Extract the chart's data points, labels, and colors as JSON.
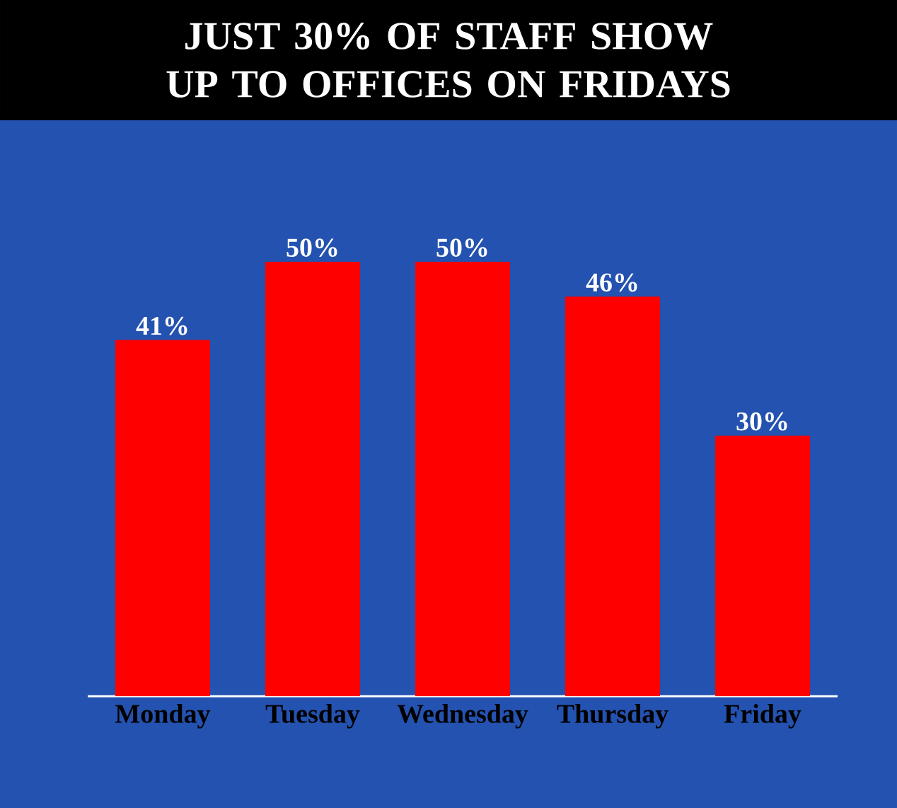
{
  "chart_data": {
    "type": "bar",
    "title": "JUST 30% OF STAFF SHOW UP TO OFFICES ON FRIDAYS",
    "categories": [
      "Monday",
      "Tuesday",
      "Wednesday",
      "Thursday",
      "Friday"
    ],
    "values": [
      41,
      50,
      50,
      46,
      30
    ],
    "value_labels": [
      "41%",
      "50%",
      "50%",
      "46%",
      "30%"
    ],
    "color": "#ff0000"
  }
}
